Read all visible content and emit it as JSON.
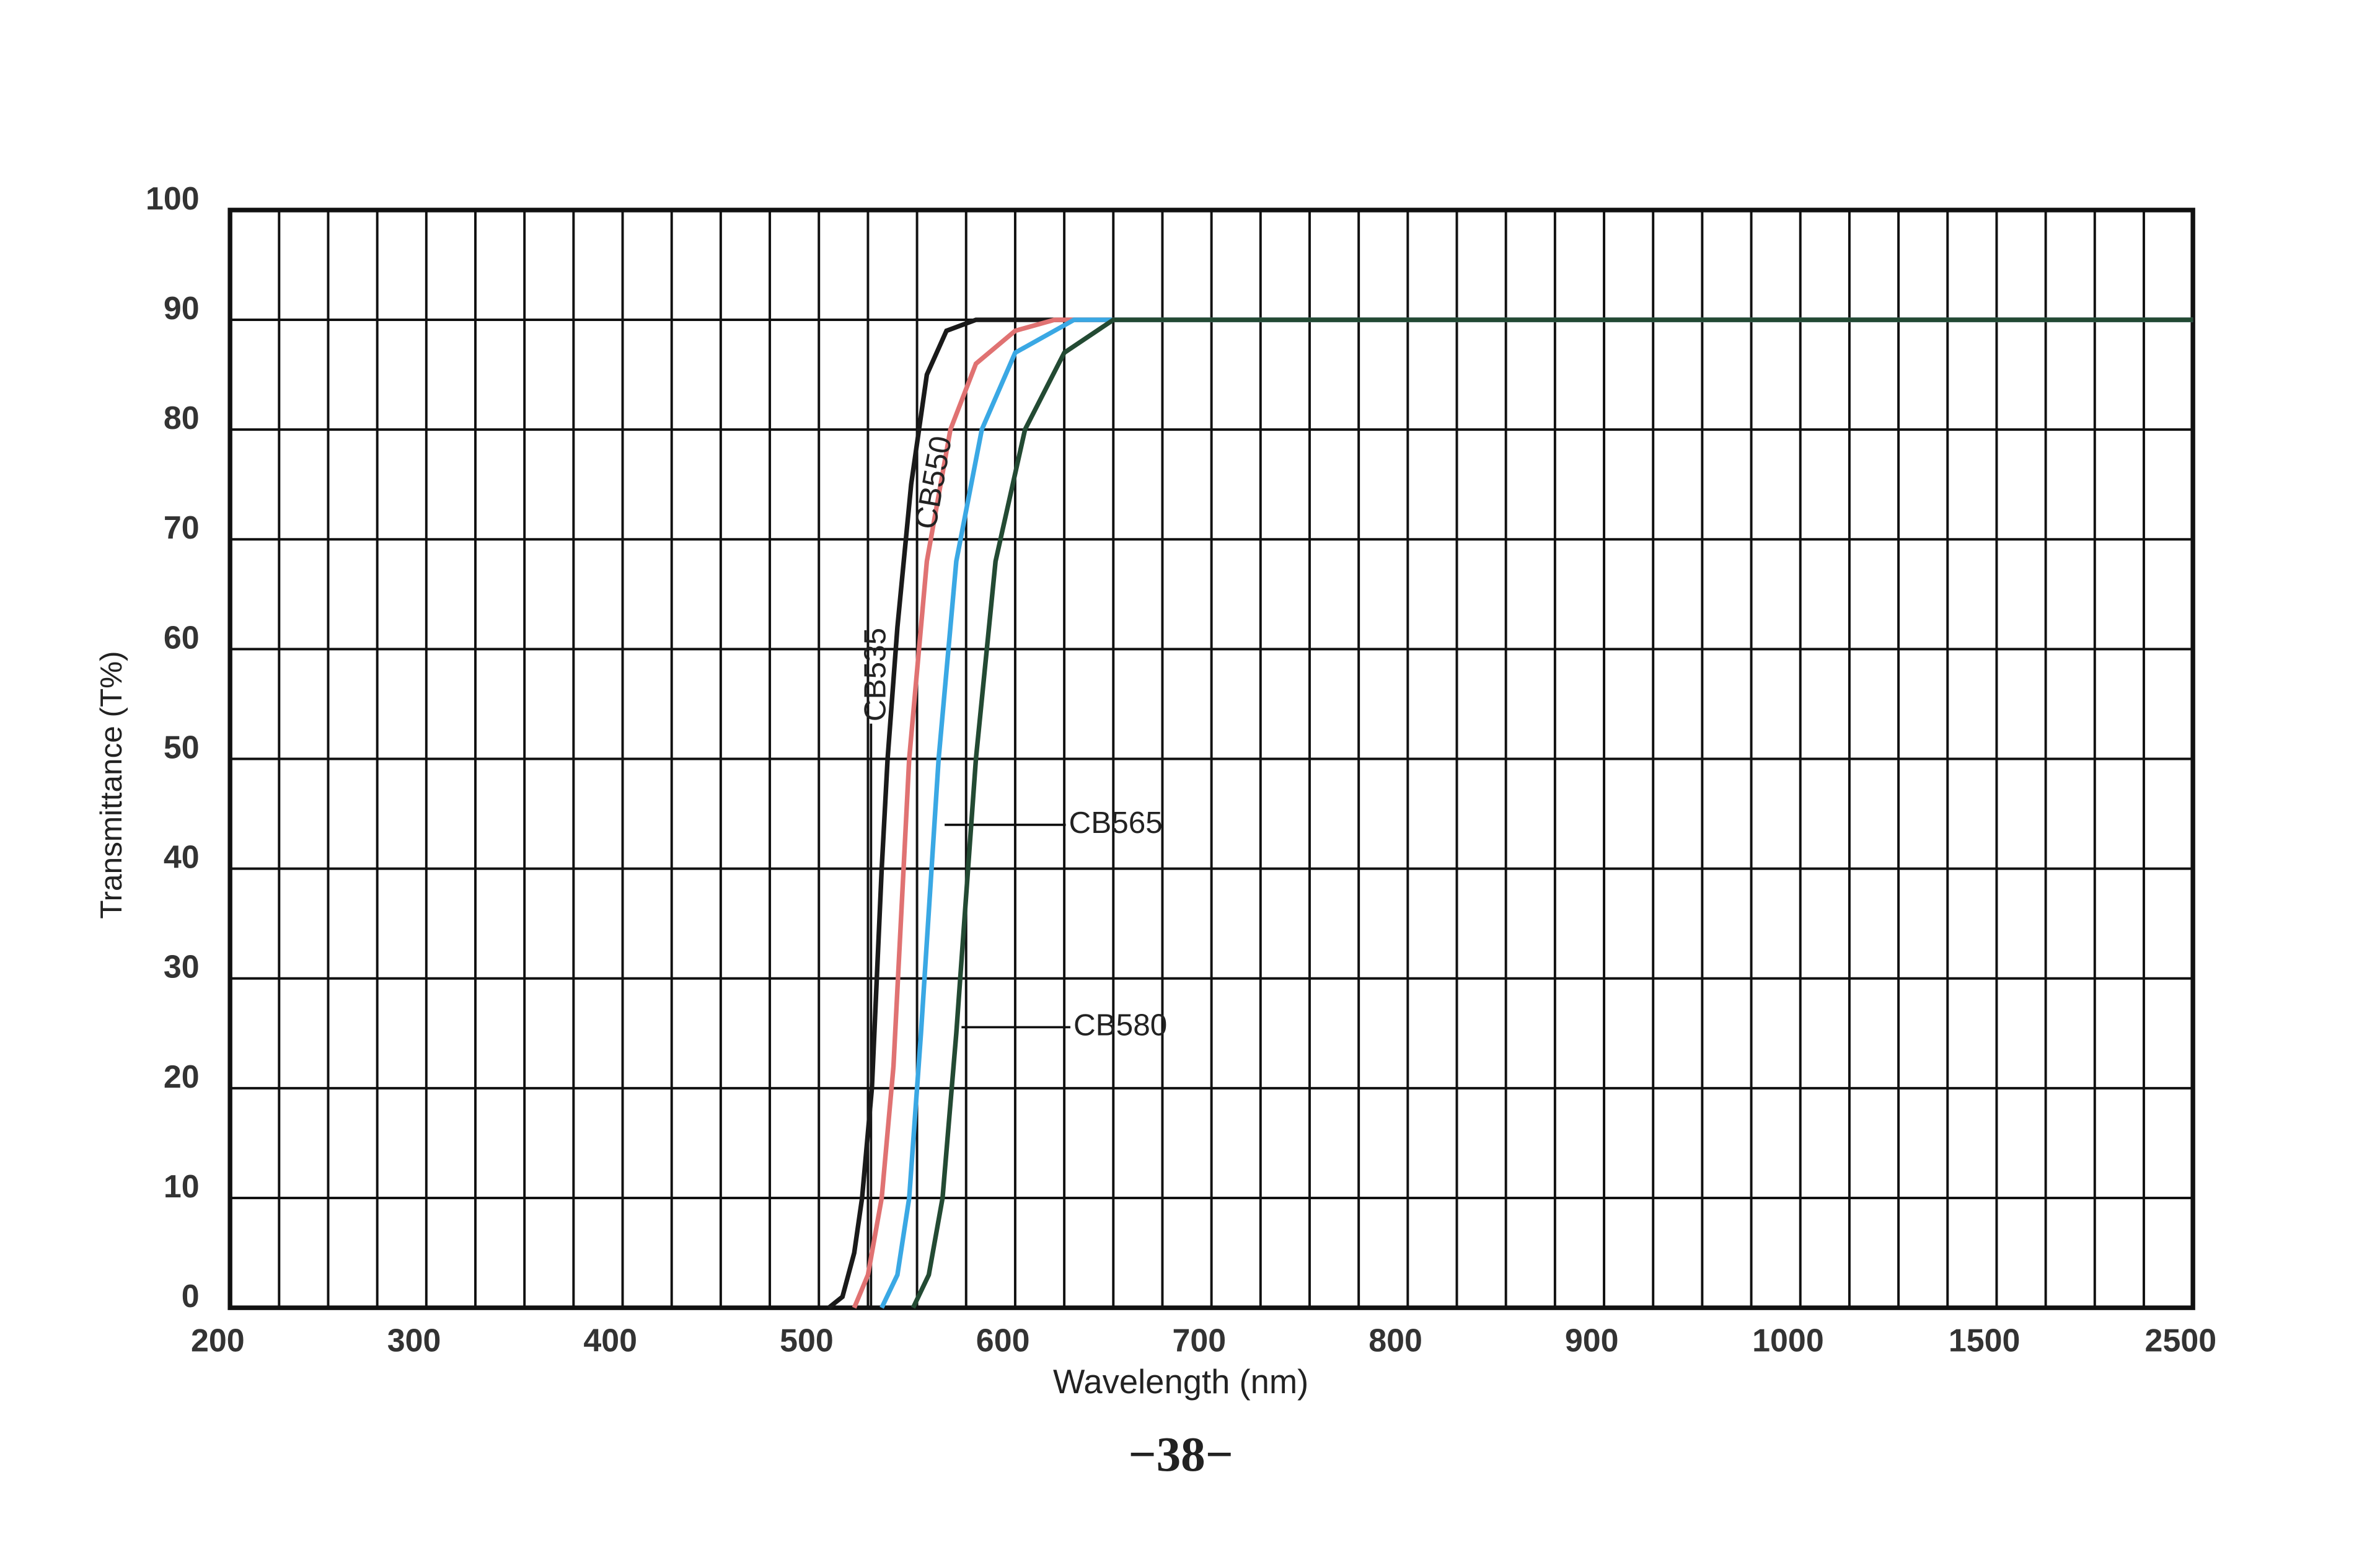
{
  "chart_data": {
    "type": "line",
    "x_label": "Wavelength (nm)",
    "y_label": "Transmittance (T%)",
    "page_number": "−38−",
    "xticks": [
      200,
      300,
      400,
      500,
      600,
      700,
      800,
      900,
      1000,
      1500,
      2500
    ],
    "xlim": [
      200,
      2500
    ],
    "ylim": [
      0,
      100
    ],
    "yticks": [
      0,
      10,
      20,
      30,
      40,
      50,
      60,
      70,
      80,
      90,
      100
    ],
    "grid": true,
    "series": [
      {
        "name": "CB535",
        "color": "#1a1a1a",
        "x": [
          505,
          512,
          518,
          522,
          527,
          532,
          535,
          540,
          547,
          555,
          565,
          580,
          2500
        ],
        "values": [
          0,
          1,
          5,
          10,
          20,
          40,
          50,
          62,
          75,
          85,
          89,
          90,
          90
        ]
      },
      {
        "name": "CB550",
        "color": "#e07272",
        "x": [
          518,
          525,
          532,
          538,
          546,
          555,
          567,
          580,
          600,
          620,
          2500
        ],
        "values": [
          0,
          3,
          10,
          22,
          50,
          68,
          80,
          86,
          89,
          90,
          90
        ]
      },
      {
        "name": "CB565",
        "color": "#3aa8e4",
        "x": [
          532,
          540,
          546,
          552,
          561,
          570,
          583,
          600,
          630,
          2500
        ],
        "values": [
          0,
          3,
          10,
          25,
          50,
          68,
          80,
          87,
          90,
          90
        ]
      },
      {
        "name": "CB580",
        "color": "#234a33",
        "x": [
          548,
          556,
          563,
          570,
          580,
          590,
          605,
          625,
          650,
          2500
        ],
        "values": [
          0,
          3,
          10,
          25,
          50,
          68,
          80,
          87,
          90,
          90
        ]
      }
    ]
  }
}
